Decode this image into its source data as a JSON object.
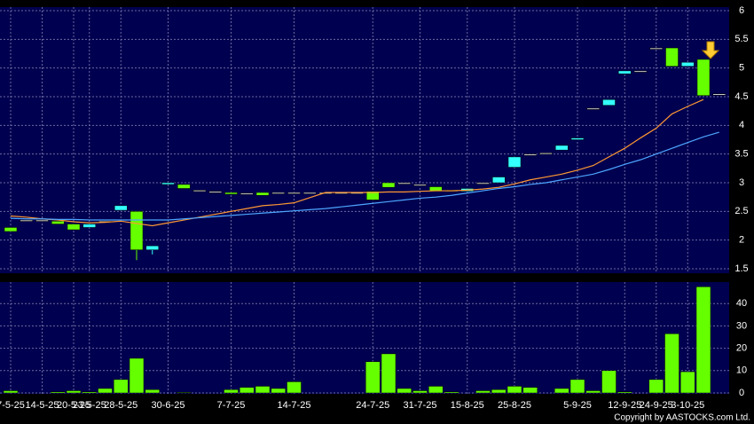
{
  "chart_data": {
    "type": "candlestick",
    "categories": [
      "7-5-25",
      null,
      "14-5-25",
      null,
      "20-5-25",
      "23-5-25",
      null,
      "28-5-25",
      null,
      null,
      "30-6-25",
      null,
      null,
      null,
      "7-7-25",
      null,
      null,
      null,
      "14-7-25",
      null,
      null,
      null,
      null,
      "24-7-25",
      null,
      null,
      "31-7-25",
      null,
      null,
      "15-8-25",
      null,
      null,
      "25-8-25",
      null,
      null,
      null,
      "5-9-25",
      null,
      null,
      "12-9-25",
      null,
      "24-9-25",
      null,
      "3-10-25",
      null,
      null
    ],
    "open": [
      2.22,
      2.35,
      2.35,
      2.33,
      2.28,
      2.22,
      2.33,
      2.52,
      2.5,
      1.83,
      2.97,
      2.97,
      2.87,
      2.85,
      2.83,
      2.82,
      2.83,
      2.83,
      2.83,
      2.83,
      2.83,
      2.83,
      2.83,
      2.85,
      3.0,
      3.0,
      2.97,
      2.93,
      2.87,
      2.85,
      3.0,
      3.0,
      3.27,
      3.5,
      3.52,
      3.57,
      3.75,
      4.3,
      4.35,
      4.9,
      4.95,
      5.35,
      5.35,
      5.03,
      5.15,
      4.55
    ],
    "high": [
      2.22,
      2.35,
      2.35,
      2.33,
      2.28,
      2.28,
      2.33,
      2.6,
      2.5,
      1.9,
      3.0,
      2.97,
      2.87,
      2.85,
      2.83,
      2.82,
      2.83,
      2.83,
      2.83,
      2.83,
      2.83,
      2.83,
      2.83,
      2.85,
      3.0,
      3.0,
      2.97,
      2.93,
      2.87,
      2.9,
      3.0,
      3.1,
      3.45,
      3.5,
      3.52,
      3.65,
      3.78,
      4.3,
      4.45,
      4.95,
      4.95,
      5.35,
      5.35,
      5.1,
      5.15,
      4.55
    ],
    "low": [
      2.15,
      2.35,
      2.35,
      2.28,
      2.18,
      2.22,
      2.33,
      2.52,
      1.65,
      1.75,
      2.97,
      2.9,
      2.87,
      2.85,
      2.8,
      2.82,
      2.78,
      2.83,
      2.83,
      2.83,
      2.83,
      2.83,
      2.83,
      2.7,
      2.92,
      3.0,
      2.97,
      2.85,
      2.87,
      2.85,
      3.0,
      3.0,
      3.27,
      3.5,
      3.52,
      3.57,
      3.75,
      4.3,
      4.35,
      4.9,
      4.95,
      5.35,
      5.03,
      5.03,
      4.52,
      4.55
    ],
    "close": [
      2.15,
      2.35,
      2.35,
      2.28,
      2.18,
      2.28,
      2.33,
      2.6,
      1.83,
      1.9,
      3.0,
      2.9,
      2.87,
      2.85,
      2.8,
      2.82,
      2.78,
      2.83,
      2.83,
      2.83,
      2.83,
      2.83,
      2.83,
      2.7,
      2.92,
      3.0,
      2.97,
      2.85,
      2.87,
      2.9,
      3.0,
      3.1,
      3.45,
      3.5,
      3.52,
      3.65,
      3.78,
      4.3,
      4.45,
      4.95,
      4.95,
      5.35,
      5.03,
      5.1,
      4.52,
      4.55
    ],
    "up_color": "#33ffff",
    "down_color": "#66ff00",
    "flat_color": "#cccccc",
    "ma_lines": [
      {
        "color": "#ff9933",
        "values": [
          2.42,
          2.4,
          2.37,
          2.35,
          2.32,
          2.3,
          2.31,
          2.33,
          2.29,
          2.25,
          2.3,
          2.35,
          2.4,
          2.45,
          2.5,
          2.55,
          2.6,
          2.62,
          2.65,
          2.74,
          2.83,
          2.83,
          2.83,
          2.83,
          2.84,
          2.84,
          2.85,
          2.86,
          2.86,
          2.87,
          2.89,
          2.92,
          2.98,
          3.05,
          3.1,
          3.15,
          3.22,
          3.3,
          3.45,
          3.6,
          3.78,
          3.95,
          4.2,
          4.33,
          4.45,
          null
        ]
      },
      {
        "color": "#4da6ff",
        "values": [
          2.38,
          2.37,
          2.37,
          2.36,
          2.36,
          2.35,
          2.35,
          2.35,
          2.35,
          2.35,
          2.35,
          2.37,
          2.39,
          2.41,
          2.43,
          2.45,
          2.47,
          2.49,
          2.51,
          2.53,
          2.55,
          2.58,
          2.61,
          2.64,
          2.67,
          2.7,
          2.73,
          2.75,
          2.78,
          2.82,
          2.86,
          2.9,
          2.93,
          2.97,
          3.0,
          3.05,
          3.1,
          3.15,
          3.23,
          3.32,
          3.4,
          3.5,
          3.6,
          3.7,
          3.8,
          3.88
        ]
      }
    ],
    "ylim": [
      1.5,
      6
    ],
    "yticks": [
      1.5,
      2,
      2.5,
      3,
      3.5,
      4,
      4.5,
      5,
      5.5,
      6
    ],
    "volume": [
      1,
      0,
      0,
      0.5,
      1,
      0.5,
      2,
      6,
      15.5,
      1.5,
      0,
      0.3,
      0,
      0,
      1.5,
      2.5,
      3,
      2,
      5,
      0,
      0,
      0,
      0,
      14,
      17.5,
      2,
      1,
      3,
      0.5,
      0,
      1,
      1.5,
      3,
      2.5,
      0,
      2,
      6,
      1,
      10,
      0.5,
      0,
      6,
      26.5,
      9.5,
      47.5,
      0
    ],
    "volume_color": "#66ff00",
    "y2lim": [
      0,
      50
    ],
    "y2ticks": [
      0,
      10,
      20,
      30,
      40
    ],
    "grid": true,
    "copyright": "Copyright by AASTOCKS.com Ltd."
  }
}
